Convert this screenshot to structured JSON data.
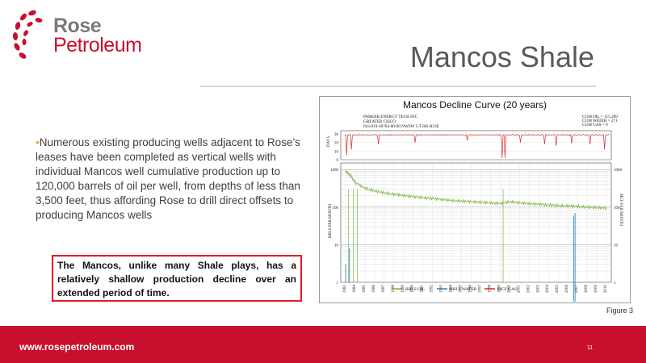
{
  "logo": {
    "line1": "Rose",
    "line2": "Petroleum"
  },
  "slide": {
    "title": "Mancos Shale",
    "bullet": "Numerous existing producing wells adjacent to Rose’s  leases have been completed as vertical wells with individual Mancos well cumulative production up to 120,000 barrels of oil per well, from depths of less than 3,500 feet, thus affording Rose to drill direct offsets to producing Mancos wells",
    "callout": "The Mancos, unlike many Shale plays, has a relatively shallow production decline over an extended period of time.",
    "figure_caption": "Mancos Decline Curve (20 years)",
    "figure_label": "Figure 3"
  },
  "footer": {
    "url": "www.rosepetroleum.com",
    "page": "11"
  },
  "colors": {
    "brand_red": "#c8102e",
    "oil": "#7cb342",
    "water": "#2e86c1",
    "gas": "#d32f2f"
  },
  "chart_data": {
    "type": "line",
    "header": [
      "PARKER ENERGY TECH INC",
      "GREATER CISCO",
      "043-019-30764-00-00   NWSW 5-T20S-R23E"
    ],
    "cumulative": [
      "CUM OIL = 115,289",
      "CUM WATER = 271",
      "CUM GAS = 0"
    ],
    "days_axis_label": "DAYS",
    "ylabel": "BBLS PER MONTH",
    "ylabel_right": "MCF PER MONTH",
    "y_ticks": [
      "1000",
      "100",
      "10",
      "1"
    ],
    "y_ticks_right": [
      "1000",
      "100",
      "10",
      "1"
    ],
    "days_ticks": [
      "30",
      "20",
      "10",
      "0"
    ],
    "x_ticks": [
      "1983",
      "1984",
      "1985",
      "1986",
      "1987",
      "1988",
      "1989",
      "1990",
      "1991",
      "1992",
      "1993",
      "1994",
      "1995",
      "1996",
      "1997",
      "1998",
      "1999",
      "2000",
      "2001",
      "2002",
      "2003",
      "2004",
      "2005",
      "2006",
      "2007",
      "2008",
      "2009",
      "2010"
    ],
    "legend": [
      "BBLS OIL",
      "BBLS WATER",
      "MCF GAS"
    ],
    "ylim": [
      1,
      1000
    ],
    "x": [
      1983,
      1983.5,
      1984,
      1985,
      1986,
      1987,
      1988,
      1989,
      1990,
      1991,
      1992,
      1993,
      1994,
      1995,
      1996,
      1997,
      1998,
      1999,
      2000,
      2001,
      2002,
      2003,
      2004,
      2005,
      2006,
      2007,
      2008,
      2009,
      2010
    ],
    "series": [
      {
        "name": "BBLS OIL",
        "values": [
          900,
          700,
          450,
          320,
          270,
          240,
          220,
          205,
          190,
          180,
          170,
          160,
          150,
          145,
          140,
          135,
          130,
          125,
          140,
          130,
          125,
          120,
          115,
          110,
          108,
          105,
          100,
          98,
          95
        ]
      }
    ],
    "grid": true
  }
}
